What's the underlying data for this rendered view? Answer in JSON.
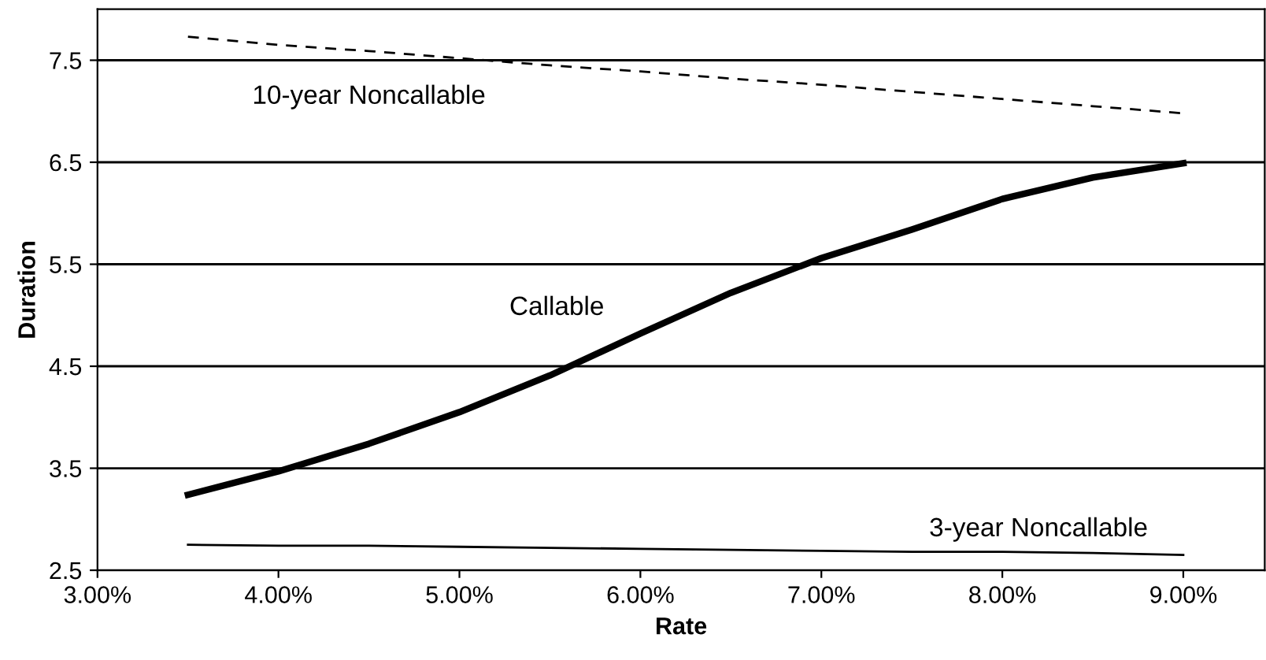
{
  "chart_data": {
    "type": "line",
    "xlabel": "Rate",
    "ylabel": "Duration",
    "x": [
      3.5,
      4,
      4.5,
      5,
      5.5,
      6,
      6.5,
      7,
      7.5,
      8,
      8.5,
      9
    ],
    "series": [
      {
        "name": "10-year Noncallable",
        "color": "#000000",
        "line_style": "dashed",
        "values": [
          7.73,
          7.65,
          7.59,
          7.52,
          7.45,
          7.39,
          7.32,
          7.26,
          7.19,
          7.12,
          7.05,
          6.98
        ]
      },
      {
        "name": "Callable",
        "color": "#000000",
        "line_style": "solid",
        "values": [
          3.24,
          3.47,
          3.74,
          4.05,
          4.41,
          4.82,
          5.22,
          5.56,
          5.84,
          6.14,
          6.35,
          6.49
        ]
      },
      {
        "name": "3-year Noncallable",
        "color": "#000000",
        "line_style": "solid",
        "values": [
          2.75,
          2.74,
          2.74,
          2.73,
          2.72,
          2.71,
          2.7,
          2.69,
          2.68,
          2.68,
          2.67,
          2.65
        ]
      }
    ],
    "xlim": [
      3,
      9.45
    ],
    "xticks": [
      {
        "value": 3,
        "label": "3.00%"
      },
      {
        "value": 4,
        "label": "4.00%"
      },
      {
        "value": 5,
        "label": "5.00%"
      },
      {
        "value": 6,
        "label": "6.00%"
      },
      {
        "value": 7,
        "label": "7.00%"
      },
      {
        "value": 8,
        "label": "8.00%"
      },
      {
        "value": 9,
        "label": "9.00%"
      }
    ],
    "ylim": [
      2.5,
      8.0
    ],
    "yticks": [
      2.5,
      3.5,
      4.5,
      5.5,
      6.5,
      7.5
    ],
    "grid": "y",
    "legend": false,
    "marker": "none"
  }
}
